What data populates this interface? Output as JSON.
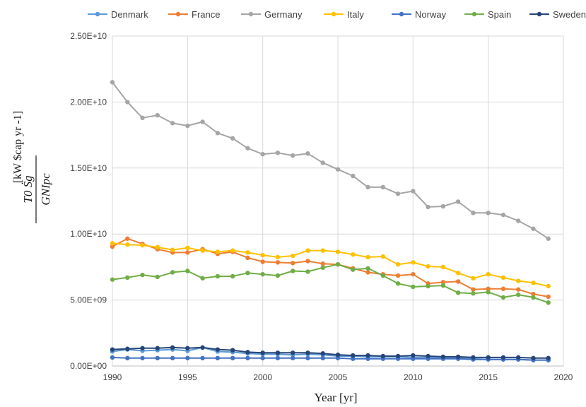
{
  "chart_data": {
    "type": "line",
    "title": "",
    "xlabel": "Year [yr]",
    "ylabel": {
      "fraction_numerator": "T0 Ṡg",
      "fraction_denominator": "GNIpc",
      "unit": "[kW $cap yr -1]"
    },
    "xlim": [
      1990,
      2020
    ],
    "ylim": [
      0,
      25000000000
    ],
    "xticks": [
      1990,
      1995,
      2000,
      2005,
      2010,
      2015,
      2020
    ],
    "yticks": [
      0,
      5000000000,
      10000000000,
      15000000000,
      20000000000,
      25000000000
    ],
    "ytick_labels": [
      "0.00E+00",
      "5.00E+09",
      "1.00E+10",
      "1.50E+10",
      "2.00E+10",
      "2.50E+10"
    ],
    "grid": true,
    "legend_position": "top",
    "x": [
      1990,
      1991,
      1992,
      1993,
      1994,
      1995,
      1996,
      1997,
      1998,
      1999,
      2000,
      2001,
      2002,
      2003,
      2004,
      2005,
      2006,
      2007,
      2008,
      2009,
      2010,
      2011,
      2012,
      2013,
      2014,
      2015,
      2016,
      2017,
      2018,
      2019
    ],
    "series": [
      {
        "name": "Denmark",
        "color": "#5b9bd5",
        "values": [
          1100000000.0,
          1250000000.0,
          1150000000.0,
          1200000000.0,
          1250000000.0,
          1150000000.0,
          1400000000.0,
          1100000000.0,
          1050000000.0,
          950000000.0,
          900000000.0,
          900000000.0,
          850000000.0,
          900000000.0,
          850000000.0,
          750000000.0,
          750000000.0,
          700000000.0,
          700000000.0,
          700000000.0,
          650000000.0,
          650000000.0,
          650000000.0,
          600000000.0,
          550000000.0,
          500000000.0,
          500000000.0,
          500000000.0,
          450000000.0,
          450000000.0
        ]
      },
      {
        "name": "France",
        "color": "#ed7d31",
        "values": [
          9050000000.0,
          9650000000.0,
          9250000000.0,
          8850000000.0,
          8600000000.0,
          8600000000.0,
          8850000000.0,
          8500000000.0,
          8650000000.0,
          8200000000.0,
          7900000000.0,
          7850000000.0,
          7800000000.0,
          7950000000.0,
          7750000000.0,
          7700000000.0,
          7400000000.0,
          7100000000.0,
          6950000000.0,
          6850000000.0,
          6950000000.0,
          6250000000.0,
          6350000000.0,
          6400000000.0,
          5800000000.0,
          5850000000.0,
          5850000000.0,
          5800000000.0,
          5450000000.0,
          5250000000.0
        ]
      },
      {
        "name": "Germany",
        "color": "#a5a5a5",
        "values": [
          21500000000.0,
          20000000000.0,
          18800000000.0,
          19000000000.0,
          18400000000.0,
          18200000000.0,
          18500000000.0,
          17650000000.0,
          17250000000.0,
          16500000000.0,
          16050000000.0,
          16150000000.0,
          15950000000.0,
          16100000000.0,
          15400000000.0,
          14900000000.0,
          14400000000.0,
          13550000000.0,
          13550000000.0,
          13050000000.0,
          13250000000.0,
          12050000000.0,
          12100000000.0,
          12450000000.0,
          11600000000.0,
          11600000000.0,
          11450000000.0,
          11000000000.0,
          10400000000.0,
          9650000000.0
        ]
      },
      {
        "name": "Italy",
        "color": "#ffc000",
        "values": [
          9300000000.0,
          9200000000.0,
          9150000000.0,
          9000000000.0,
          8800000000.0,
          8950000000.0,
          8750000000.0,
          8650000000.0,
          8750000000.0,
          8600000000.0,
          8400000000.0,
          8250000000.0,
          8350000000.0,
          8750000000.0,
          8750000000.0,
          8650000000.0,
          8450000000.0,
          8250000000.0,
          8300000000.0,
          7700000000.0,
          7850000000.0,
          7550000000.0,
          7500000000.0,
          7050000000.0,
          6650000000.0,
          6950000000.0,
          6700000000.0,
          6450000000.0,
          6300000000.0,
          6050000000.0
        ]
      },
      {
        "name": "Norway",
        "color": "#4472c4",
        "values": [
          650000000.0,
          600000000.0,
          600000000.0,
          600000000.0,
          600000000.0,
          600000000.0,
          600000000.0,
          600000000.0,
          600000000.0,
          600000000.0,
          600000000.0,
          600000000.0,
          600000000.0,
          600000000.0,
          600000000.0,
          600000000.0,
          550000000.0,
          550000000.0,
          550000000.0,
          550000000.0,
          550000000.0,
          550000000.0,
          550000000.0,
          550000000.0,
          500000000.0,
          500000000.0,
          500000000.0,
          500000000.0,
          450000000.0,
          450000000.0
        ]
      },
      {
        "name": "Spain",
        "color": "#70ad47",
        "values": [
          6550000000.0,
          6700000000.0,
          6900000000.0,
          6750000000.0,
          7100000000.0,
          7200000000.0,
          6650000000.0,
          6800000000.0,
          6800000000.0,
          7050000000.0,
          6950000000.0,
          6850000000.0,
          7200000000.0,
          7150000000.0,
          7450000000.0,
          7700000000.0,
          7300000000.0,
          7400000000.0,
          6850000000.0,
          6250000000.0,
          6000000000.0,
          6050000000.0,
          6100000000.0,
          5550000000.0,
          5500000000.0,
          5600000000.0,
          5200000000.0,
          5400000000.0,
          5200000000.0,
          4800000000.0
        ]
      },
      {
        "name": "Sweden",
        "color": "#264478",
        "values": [
          1250000000.0,
          1300000000.0,
          1350000000.0,
          1350000000.0,
          1400000000.0,
          1350000000.0,
          1400000000.0,
          1250000000.0,
          1200000000.0,
          1050000000.0,
          1000000000.0,
          1000000000.0,
          1000000000.0,
          1000000000.0,
          950000000.0,
          850000000.0,
          800000000.0,
          800000000.0,
          750000000.0,
          750000000.0,
          800000000.0,
          750000000.0,
          700000000.0,
          700000000.0,
          650000000.0,
          650000000.0,
          650000000.0,
          650000000.0,
          600000000.0,
          600000000.0
        ]
      }
    ]
  }
}
